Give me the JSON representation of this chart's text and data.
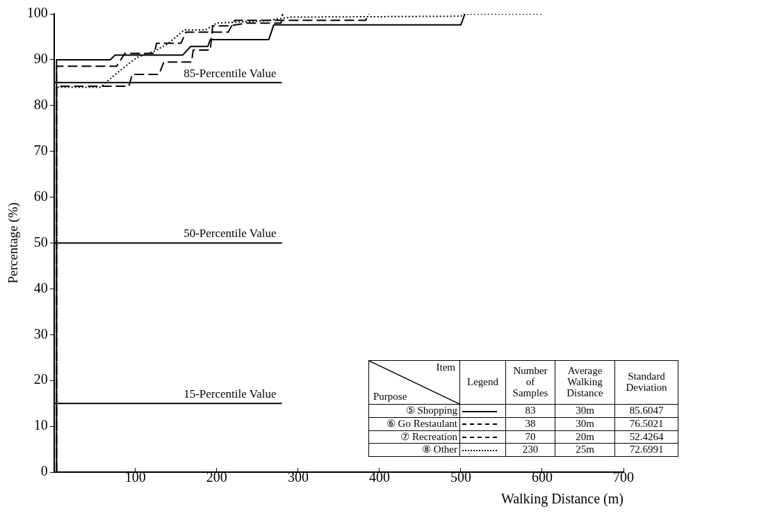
{
  "chart_data": {
    "type": "line",
    "xlabel": "Walking Distance (m)",
    "ylabel": "Percentage (%)",
    "xlim": [
      0,
      700
    ],
    "xticks": [
      100,
      200,
      300,
      400,
      500,
      600,
      700
    ],
    "ylim": [
      0,
      100
    ],
    "yticks": [
      0,
      10,
      20,
      30,
      40,
      50,
      60,
      70,
      80,
      90,
      100
    ],
    "legend": "bottom right",
    "series": [
      {
        "name": "⑤ Shopping",
        "color": "#000000",
        "line_style": "solid",
        "x": [
          3,
          3,
          69,
          75,
          158,
          168,
          189,
          192,
          264,
          270,
          500,
          505
        ],
        "values": [
          0,
          90,
          90,
          91,
          91,
          92.9,
          92.9,
          94.4,
          94.4,
          97.6,
          97.6,
          100
        ]
      },
      {
        "name": "⑥ Go Restaulant",
        "color": "#000000",
        "line_style": "dashed",
        "x": [
          3,
          3,
          92,
          96,
          129,
          135,
          169,
          171,
          192,
          195,
          216,
          237,
          279,
          281
        ],
        "values": [
          0,
          84.2,
          84.2,
          86.8,
          86.8,
          89.5,
          89.5,
          92.1,
          92.1,
          97.4,
          97.4,
          98,
          98,
          100
        ]
      },
      {
        "name": "⑦ Recreation",
        "color": "#000000",
        "line_style": "dashed",
        "x": [
          3,
          3,
          77,
          87,
          123,
          126,
          156,
          162,
          214,
          222,
          383,
          387
        ],
        "values": [
          0,
          88.6,
          88.6,
          91.4,
          91.4,
          93.6,
          93.6,
          96,
          96,
          98.6,
          98.6,
          100
        ]
      },
      {
        "name": "⑧ Other",
        "color": "#000000",
        "line_style": "dotted",
        "x": [
          3,
          3,
          57,
          80,
          102,
          125,
          140,
          160,
          186,
          200,
          260,
          291,
          500,
          505,
          601
        ],
        "values": [
          0,
          84,
          84,
          87.5,
          90.5,
          92,
          93.5,
          96.5,
          96.5,
          98,
          98.5,
          99.3,
          99.5,
          100,
          100
        ]
      }
    ],
    "ref_lines": [
      {
        "axis": "y",
        "value": 85,
        "label": "85-Percentile Value",
        "color": "#000000"
      },
      {
        "axis": "y",
        "value": 50,
        "label": "50-Percentile Value",
        "color": "#000000"
      },
      {
        "axis": "y",
        "value": 15,
        "label": "15-Percentile Value",
        "color": "#000000"
      }
    ],
    "annotations": [
      "Item",
      "Purpose",
      "Legend",
      "Number of Samples",
      "Average Walking Distance",
      "Standard Deviation",
      "83",
      "30m",
      "85.6047",
      "38",
      "30m",
      "76.5021",
      "70",
      "20m",
      "52.4264",
      "230",
      "25m",
      "72.6991"
    ]
  }
}
